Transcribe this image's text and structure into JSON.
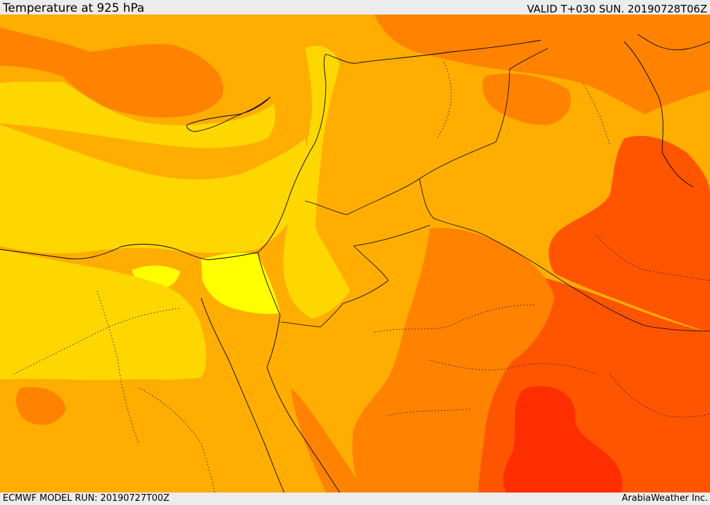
{
  "header": {
    "title": "Temperature at 925 hPa",
    "valid": "VALID T+030 SUN. 20190728T06Z"
  },
  "footer": {
    "model_run": "ECMWF MODEL RUN: 20190727T00Z",
    "credit": "ArabiaWeather Inc."
  },
  "map": {
    "field": "temperature",
    "palette": [
      "#ffff00",
      "#ffd700",
      "#ffad00",
      "#ff8200",
      "#ff5500",
      "#ff2e00"
    ]
  }
}
